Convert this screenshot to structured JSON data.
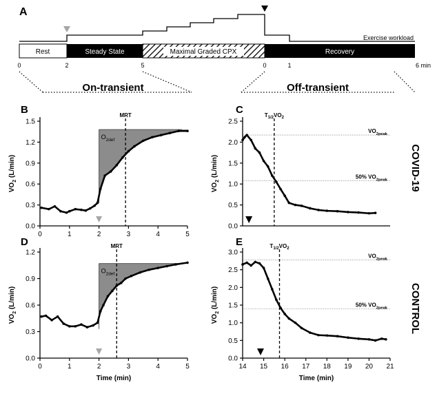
{
  "panel_labels": {
    "a": "A",
    "b": "B",
    "c": "C",
    "d": "D",
    "e": "E"
  },
  "protocol": {
    "workload_label": "Exercise workload",
    "phases": [
      "Rest",
      "Steady State",
      "Maximal Graded CPX",
      "Recovery"
    ],
    "ticks": [
      "0",
      "2",
      "5",
      "0",
      "1",
      "6 min"
    ],
    "on_transient": "On-transient",
    "off_transient": "Off-transient"
  },
  "row_labels": {
    "covid": "COVID-19",
    "control": "CONTROL"
  },
  "colors": {
    "curve": "#000000",
    "fill": "#8c8c8c",
    "marker_gray": "#a6a6a6",
    "black_block": "#000000"
  },
  "chart_data": [
    {
      "id": "B",
      "type": "scatter",
      "grid": false,
      "xlim": [
        0,
        5
      ],
      "ylim": [
        0,
        1.5
      ],
      "xticks": [
        "0",
        "1",
        "2",
        "3",
        "4",
        "5"
      ],
      "yticks": [
        "0.0",
        "0.3",
        "0.6",
        "0.9",
        "1.2",
        "1.5"
      ],
      "xlabel": "",
      "ylabel": "VO2 (L/min)",
      "annotations": {
        "vline": 2.9,
        "vline_label": "MRT",
        "deficit_label": "O2def",
        "onset": 2.0,
        "plateau": 1.38
      },
      "series": [
        {
          "x": [
            0.05,
            0.3,
            0.5,
            0.7,
            0.9,
            1.0,
            1.2,
            1.4,
            1.55,
            1.7,
            1.85,
            1.95,
            2.05,
            2.2,
            2.4,
            2.6,
            2.8,
            3.0,
            3.2,
            3.5,
            3.8,
            4.1,
            4.4,
            4.7,
            5.0
          ],
          "y": [
            0.26,
            0.24,
            0.28,
            0.21,
            0.19,
            0.21,
            0.24,
            0.23,
            0.22,
            0.25,
            0.29,
            0.33,
            0.53,
            0.72,
            0.78,
            0.87,
            0.98,
            1.07,
            1.14,
            1.22,
            1.27,
            1.3,
            1.33,
            1.36,
            1.36
          ]
        }
      ]
    },
    {
      "id": "C",
      "type": "scatter",
      "grid": false,
      "xlim": [
        14,
        21
      ],
      "ylim": [
        0,
        2.5
      ],
      "xticks": [],
      "yticks": [
        "0.0",
        "0.5",
        "1.0",
        "1.5",
        "2.0",
        "2.5"
      ],
      "xlabel": "",
      "ylabel": "VO2 (L/min)",
      "annotations": {
        "vline": 15.5,
        "vline_label": "T1/2VO2",
        "peak": 2.17,
        "peak_label": "VO2peak",
        "half": 1.08,
        "half_label": "50% VO2peak",
        "marker_x": 14.3
      },
      "series": [
        {
          "x": [
            14.0,
            14.1,
            14.2,
            14.4,
            14.6,
            14.8,
            15.0,
            15.2,
            15.4,
            15.6,
            15.8,
            16.0,
            16.2,
            16.5,
            16.8,
            17.2,
            17.6,
            18.0,
            18.5,
            19.0,
            19.5,
            20.0,
            20.3
          ],
          "y": [
            2.05,
            2.12,
            2.17,
            2.05,
            1.85,
            1.75,
            1.55,
            1.42,
            1.2,
            1.05,
            0.88,
            0.72,
            0.55,
            0.5,
            0.48,
            0.42,
            0.38,
            0.36,
            0.35,
            0.33,
            0.32,
            0.3,
            0.31
          ]
        }
      ]
    },
    {
      "id": "D",
      "type": "scatter",
      "grid": false,
      "xlim": [
        0,
        5
      ],
      "ylim": [
        0,
        1.2
      ],
      "xticks": [
        "0",
        "1",
        "2",
        "3",
        "4",
        "5"
      ],
      "yticks": [
        "0.0",
        "0.3",
        "0.6",
        "0.9",
        "1.2"
      ],
      "xlabel": "Time (min)",
      "ylabel": "VO2 (L/min)",
      "annotations": {
        "vline": 2.6,
        "vline_label": "MRT",
        "deficit_label": "O2def",
        "onset": 2.0,
        "plateau": 1.07
      },
      "series": [
        {
          "x": [
            0.05,
            0.2,
            0.4,
            0.6,
            0.8,
            1.0,
            1.2,
            1.4,
            1.6,
            1.8,
            1.95,
            2.05,
            2.15,
            2.3,
            2.45,
            2.6,
            2.75,
            2.9,
            3.1,
            3.4,
            3.7,
            4.0,
            4.3,
            4.6,
            5.0
          ],
          "y": [
            0.47,
            0.48,
            0.43,
            0.47,
            0.39,
            0.36,
            0.36,
            0.38,
            0.35,
            0.37,
            0.4,
            0.53,
            0.6,
            0.7,
            0.76,
            0.82,
            0.85,
            0.9,
            0.93,
            0.97,
            1.0,
            1.02,
            1.04,
            1.06,
            1.08
          ]
        }
      ]
    },
    {
      "id": "E",
      "type": "scatter",
      "grid": false,
      "xlim": [
        14,
        21
      ],
      "ylim": [
        0,
        3.0
      ],
      "xticks": [
        "14",
        "15",
        "16",
        "17",
        "18",
        "19",
        "20",
        "21"
      ],
      "yticks": [
        "0.0",
        "0.5",
        "1.0",
        "1.5",
        "2.0",
        "2.5",
        "3.0"
      ],
      "xlabel": "Time (min)",
      "ylabel": "VO2 (L/min)",
      "annotations": {
        "vline": 15.75,
        "vline_label": "T1/2VO2",
        "peak": 2.78,
        "peak_label": "VO2peak",
        "half": 1.39,
        "half_label": "50% VO2peak",
        "marker_x": 14.85
      },
      "series": [
        {
          "x": [
            14.0,
            14.2,
            14.4,
            14.6,
            14.8,
            15.0,
            15.2,
            15.4,
            15.6,
            15.8,
            16.0,
            16.2,
            16.5,
            16.8,
            17.2,
            17.6,
            18.0,
            18.5,
            19.0,
            19.5,
            20.0,
            20.3,
            20.6,
            20.8
          ],
          "y": [
            2.65,
            2.7,
            2.62,
            2.72,
            2.68,
            2.55,
            2.25,
            1.95,
            1.65,
            1.42,
            1.25,
            1.12,
            1.0,
            0.85,
            0.72,
            0.65,
            0.64,
            0.62,
            0.58,
            0.55,
            0.53,
            0.5,
            0.55,
            0.53
          ]
        }
      ]
    }
  ]
}
